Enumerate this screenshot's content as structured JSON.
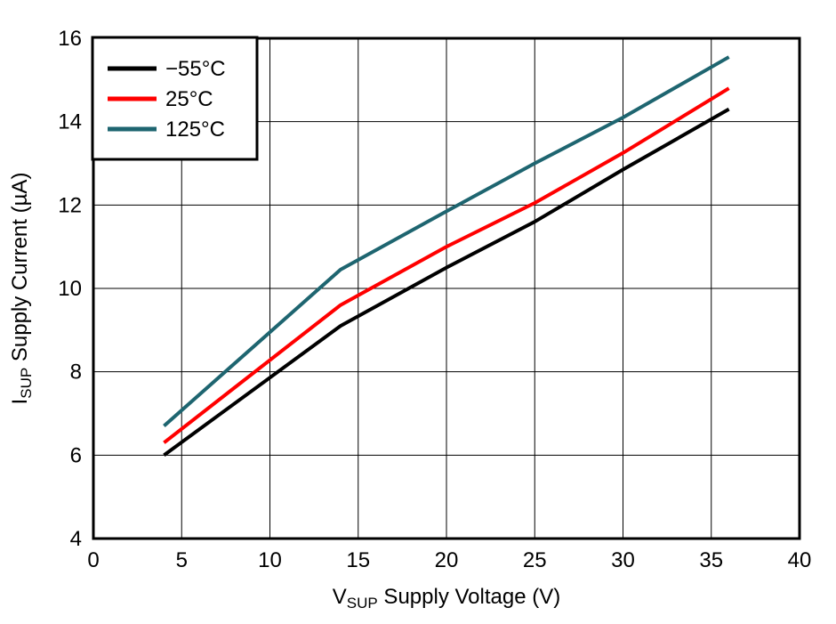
{
  "chart_data": {
    "type": "line",
    "title": "",
    "x": [
      4,
      14,
      20,
      25,
      30,
      36
    ],
    "series": [
      {
        "name": "−55°C",
        "color": "#000000",
        "values": [
          6.0,
          9.1,
          10.5,
          11.6,
          12.85,
          14.3
        ]
      },
      {
        "name": "25°C",
        "color": "#FF0000",
        "values": [
          6.3,
          9.6,
          11.0,
          12.05,
          13.25,
          14.8
        ]
      },
      {
        "name": "125°C",
        "color": "#1E6570",
        "values": [
          6.7,
          10.45,
          11.85,
          13.0,
          14.1,
          15.55
        ]
      }
    ],
    "xlabel": {
      "pre": "V",
      "sub": "SUP",
      "post": " Supply Voltage (V)"
    },
    "ylabel": {
      "pre": "I",
      "sub": "SUP",
      "post": " Supply Current (µA)"
    },
    "xlim": [
      0,
      40
    ],
    "ylim": [
      4,
      16
    ],
    "xticks": [
      0,
      5,
      10,
      15,
      20,
      25,
      30,
      35,
      40
    ],
    "yticks": [
      4,
      6,
      8,
      10,
      12,
      14,
      16
    ],
    "grid": true,
    "legend_position": "top-left",
    "background": "#FFFFFF",
    "axis_color": "#000000",
    "grid_color": "#000000"
  }
}
